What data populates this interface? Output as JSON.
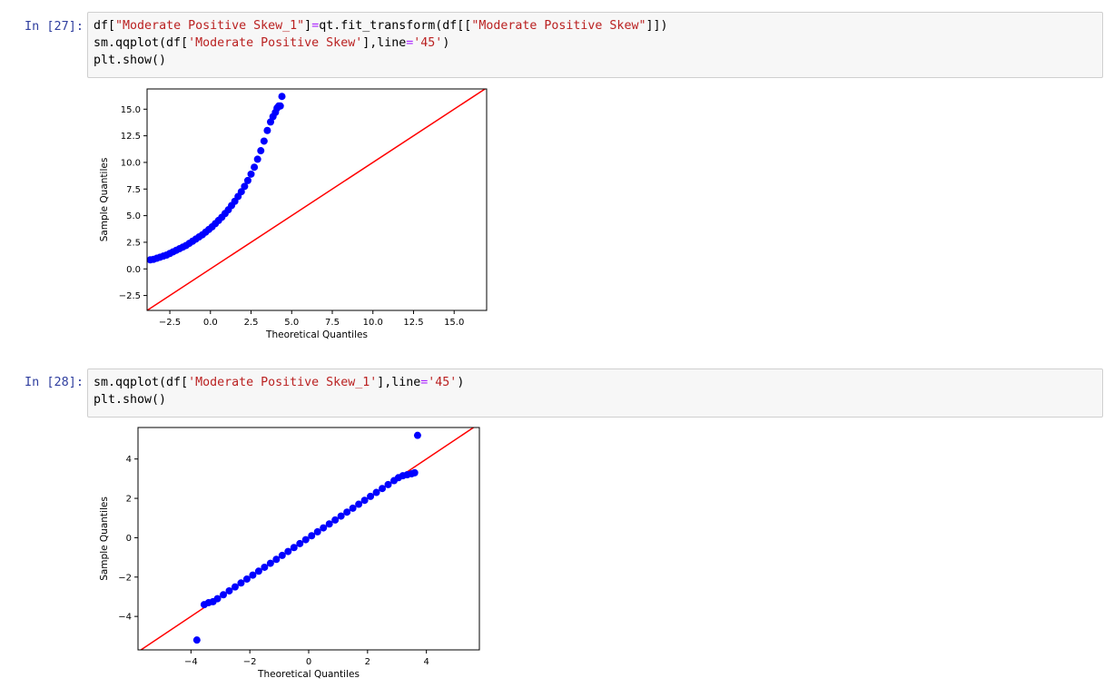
{
  "cells": [
    {
      "prompt": "In [27]:",
      "code_lines": [
        [
          [
            "df[",
            "t"
          ],
          [
            "\"Moderate Positive Skew_1\"",
            "s"
          ],
          [
            "]",
            "t"
          ],
          [
            "=",
            "o"
          ],
          [
            "qt.fit_transform(df[[",
            "t"
          ],
          [
            "\"Moderate Positive Skew\"",
            "s"
          ],
          [
            "]])",
            "t"
          ]
        ],
        [
          [
            "sm.qqplot(df[",
            "t"
          ],
          [
            "'Moderate Positive Skew'",
            "s"
          ],
          [
            "],line",
            "t"
          ],
          [
            "=",
            "o"
          ],
          [
            "'45'",
            "s"
          ],
          [
            ")",
            "t"
          ]
        ],
        [
          [
            "plt.show()",
            "t"
          ]
        ]
      ],
      "chart_data": {
        "type": "scatter",
        "xlabel": "Theoretical Quantiles",
        "ylabel": "Sample Quantiles",
        "xlim": [
          -3.9,
          17.0
        ],
        "ylim": [
          -3.9,
          16.9
        ],
        "xticks": [
          -2.5,
          0.0,
          2.5,
          5.0,
          7.5,
          10.0,
          12.5,
          15.0
        ],
        "xtick_labels": [
          "−2.5",
          "0.0",
          "2.5",
          "5.0",
          "7.5",
          "10.0",
          "12.5",
          "15.0"
        ],
        "yticks": [
          -2.5,
          0.0,
          2.5,
          5.0,
          7.5,
          10.0,
          12.5,
          15.0
        ],
        "ytick_labels": [
          "−2.5",
          "0.0",
          "2.5",
          "5.0",
          "7.5",
          "10.0",
          "12.5",
          "15.0"
        ],
        "reference_line": "45",
        "marker_color": "#0000ff",
        "line_color": "#ff0000",
        "points": [
          [
            -3.7,
            0.85
          ],
          [
            -3.5,
            0.9
          ],
          [
            -3.3,
            1.0
          ],
          [
            -3.1,
            1.1
          ],
          [
            -2.9,
            1.2
          ],
          [
            -2.7,
            1.3
          ],
          [
            -2.5,
            1.45
          ],
          [
            -2.3,
            1.6
          ],
          [
            -2.1,
            1.75
          ],
          [
            -1.9,
            1.9
          ],
          [
            -1.7,
            2.05
          ],
          [
            -1.5,
            2.2
          ],
          [
            -1.3,
            2.4
          ],
          [
            -1.1,
            2.6
          ],
          [
            -0.9,
            2.8
          ],
          [
            -0.7,
            3.0
          ],
          [
            -0.5,
            3.2
          ],
          [
            -0.3,
            3.45
          ],
          [
            -0.1,
            3.7
          ],
          [
            0.1,
            3.95
          ],
          [
            0.3,
            4.25
          ],
          [
            0.5,
            4.55
          ],
          [
            0.7,
            4.85
          ],
          [
            0.9,
            5.2
          ],
          [
            1.1,
            5.55
          ],
          [
            1.3,
            5.95
          ],
          [
            1.5,
            6.35
          ],
          [
            1.7,
            6.8
          ],
          [
            1.9,
            7.25
          ],
          [
            2.1,
            7.75
          ],
          [
            2.3,
            8.3
          ],
          [
            2.5,
            8.9
          ],
          [
            2.7,
            9.55
          ],
          [
            2.9,
            10.3
          ],
          [
            3.1,
            11.1
          ],
          [
            3.3,
            12.0
          ],
          [
            3.5,
            13.0
          ],
          [
            3.7,
            13.8
          ],
          [
            3.85,
            14.3
          ],
          [
            4.0,
            14.7
          ],
          [
            4.1,
            15.1
          ],
          [
            4.2,
            15.3
          ],
          [
            4.3,
            15.3
          ],
          [
            4.4,
            16.2
          ]
        ]
      }
    },
    {
      "prompt": "In [28]:",
      "code_lines": [
        [
          [
            "sm.qqplot(df[",
            "t"
          ],
          [
            "'Moderate Positive Skew_1'",
            "s"
          ],
          [
            "],line",
            "t"
          ],
          [
            "=",
            "o"
          ],
          [
            "'45'",
            "s"
          ],
          [
            ")",
            "t"
          ]
        ],
        [
          [
            "plt.show()",
            "t"
          ]
        ]
      ],
      "chart_data": {
        "type": "scatter",
        "xlabel": "Theoretical Quantiles",
        "ylabel": "Sample Quantiles",
        "xlim": [
          -5.8,
          5.8
        ],
        "ylim": [
          -5.7,
          5.6
        ],
        "xticks": [
          -4,
          -2,
          0,
          2,
          4
        ],
        "xtick_labels": [
          "−4",
          "−2",
          "0",
          "2",
          "4"
        ],
        "yticks": [
          -4,
          -2,
          0,
          2,
          4
        ],
        "ytick_labels": [
          "−4",
          "−2",
          "0",
          "2",
          "4"
        ],
        "reference_line": "45",
        "marker_color": "#0000ff",
        "line_color": "#ff0000",
        "points": [
          [
            -3.8,
            -5.2
          ],
          [
            -3.55,
            -3.4
          ],
          [
            -3.4,
            -3.3
          ],
          [
            -3.25,
            -3.25
          ],
          [
            -3.1,
            -3.1
          ],
          [
            -2.9,
            -2.9
          ],
          [
            -2.7,
            -2.7
          ],
          [
            -2.5,
            -2.5
          ],
          [
            -2.3,
            -2.3
          ],
          [
            -2.1,
            -2.1
          ],
          [
            -1.9,
            -1.9
          ],
          [
            -1.7,
            -1.7
          ],
          [
            -1.5,
            -1.5
          ],
          [
            -1.3,
            -1.3
          ],
          [
            -1.1,
            -1.1
          ],
          [
            -0.9,
            -0.9
          ],
          [
            -0.7,
            -0.7
          ],
          [
            -0.5,
            -0.5
          ],
          [
            -0.3,
            -0.3
          ],
          [
            -0.1,
            -0.1
          ],
          [
            0.1,
            0.1
          ],
          [
            0.3,
            0.3
          ],
          [
            0.5,
            0.5
          ],
          [
            0.7,
            0.7
          ],
          [
            0.9,
            0.9
          ],
          [
            1.1,
            1.1
          ],
          [
            1.3,
            1.3
          ],
          [
            1.5,
            1.5
          ],
          [
            1.7,
            1.7
          ],
          [
            1.9,
            1.9
          ],
          [
            2.1,
            2.1
          ],
          [
            2.3,
            2.3
          ],
          [
            2.5,
            2.5
          ],
          [
            2.7,
            2.7
          ],
          [
            2.9,
            2.9
          ],
          [
            3.05,
            3.05
          ],
          [
            3.2,
            3.15
          ],
          [
            3.35,
            3.2
          ],
          [
            3.5,
            3.25
          ],
          [
            3.6,
            3.3
          ],
          [
            3.7,
            5.2
          ]
        ]
      }
    }
  ]
}
